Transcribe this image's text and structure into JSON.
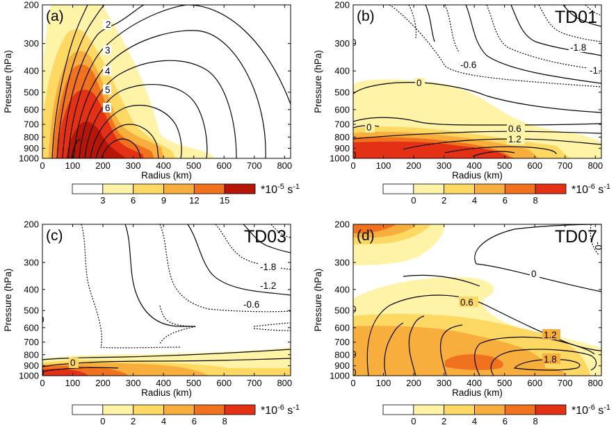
{
  "chart_data": [
    {
      "type": "contour",
      "panel_label": "(a)",
      "title": "",
      "xlabel": "Radius (km)",
      "ylabel": "Pressure (hPa)",
      "xlim": [
        0,
        820
      ],
      "ylim": [
        1000,
        200
      ],
      "x_ticks": [
        "0",
        "100",
        "200",
        "300",
        "400",
        "500",
        "600",
        "700",
        "800"
      ],
      "y_ticks": [
        "200",
        "300",
        "400",
        "500",
        "600",
        "700",
        "800",
        "900",
        "1000"
      ],
      "contour_labels": [
        "2",
        "3",
        "4",
        "5",
        "6"
      ],
      "colorbar": {
        "ticks": [
          "3",
          "6",
          "9",
          "12",
          "15"
        ],
        "unit": "*10^-5 s^-1",
        "unit_base": "*10",
        "unit_exp": "-5",
        "unit_tail": " s",
        "unit_tail_exp": "-1"
      }
    },
    {
      "type": "contour",
      "panel_label": "(b)",
      "title": "TD01",
      "xlabel": "Radius (km)",
      "ylabel": "Pressure (hPa)",
      "xlim": [
        0,
        820
      ],
      "ylim": [
        1000,
        200
      ],
      "x_ticks": [
        "0",
        "100",
        "200",
        "300",
        "400",
        "500",
        "600",
        "700",
        "800"
      ],
      "y_ticks": [
        "200",
        "300",
        "400",
        "500",
        "600",
        "700",
        "800",
        "900",
        "1000"
      ],
      "contour_labels": [
        "-1.8",
        "-0.6",
        "-1.",
        "0",
        "0",
        "0.6",
        "1.2",
        "0",
        "0"
      ],
      "colorbar": {
        "ticks": [
          "0",
          "2",
          "4",
          "6",
          "8"
        ],
        "unit": "*10^-6 s^-1",
        "unit_base": "*10",
        "unit_exp": "-6",
        "unit_tail": " s",
        "unit_tail_exp": "-1"
      }
    },
    {
      "type": "contour",
      "panel_label": "(c)",
      "title": "TD03",
      "xlabel": "Radius (km)",
      "ylabel": "Pressure (hPa)",
      "xlim": [
        0,
        820
      ],
      "ylim": [
        1000,
        200
      ],
      "x_ticks": [
        "0",
        "100",
        "200",
        "300",
        "400",
        "500",
        "600",
        "700",
        "800"
      ],
      "y_ticks": [
        "200",
        "300",
        "400",
        "500",
        "600",
        "700",
        "800",
        "900",
        "1000"
      ],
      "contour_labels": [
        "-1.8",
        "-1.2",
        "-0.6",
        "0",
        "0",
        "0"
      ],
      "colorbar": {
        "ticks": [
          "0",
          "2",
          "4",
          "6",
          "8"
        ],
        "unit": "*10^-6 s^-1",
        "unit_base": "*10",
        "unit_exp": "-6",
        "unit_tail": " s",
        "unit_tail_exp": "-1"
      }
    },
    {
      "type": "contour",
      "panel_label": "(d)",
      "title": "TD07",
      "xlabel": "Radius (km)",
      "ylabel": "Pressure (hPa)",
      "xlim": [
        0,
        820
      ],
      "ylim": [
        1000,
        200
      ],
      "x_ticks": [
        "0",
        "100",
        "200",
        "300",
        "400",
        "500",
        "600",
        "700",
        "800"
      ],
      "y_ticks": [
        "200",
        "300",
        "400",
        "500",
        "600",
        "700",
        "800",
        "900",
        "1000"
      ],
      "contour_labels": [
        "0",
        "0",
        "0.6",
        "1.2",
        "1.8",
        "-0",
        "0",
        "0"
      ],
      "colorbar": {
        "ticks": [
          "0",
          "2",
          "4",
          "6",
          "8"
        ],
        "unit": "*10^-6 s^-1",
        "unit_base": "*10",
        "unit_exp": "-6",
        "unit_tail": " s",
        "unit_tail_exp": "-1"
      }
    }
  ],
  "colors": {
    "white": "#ffffff",
    "level1": "#fff3a8",
    "level2": "#fdd964",
    "level3": "#f8ae3c",
    "level4": "#f0721e",
    "level5": "#e43014",
    "level6": "#b71508",
    "line": "#000000"
  }
}
